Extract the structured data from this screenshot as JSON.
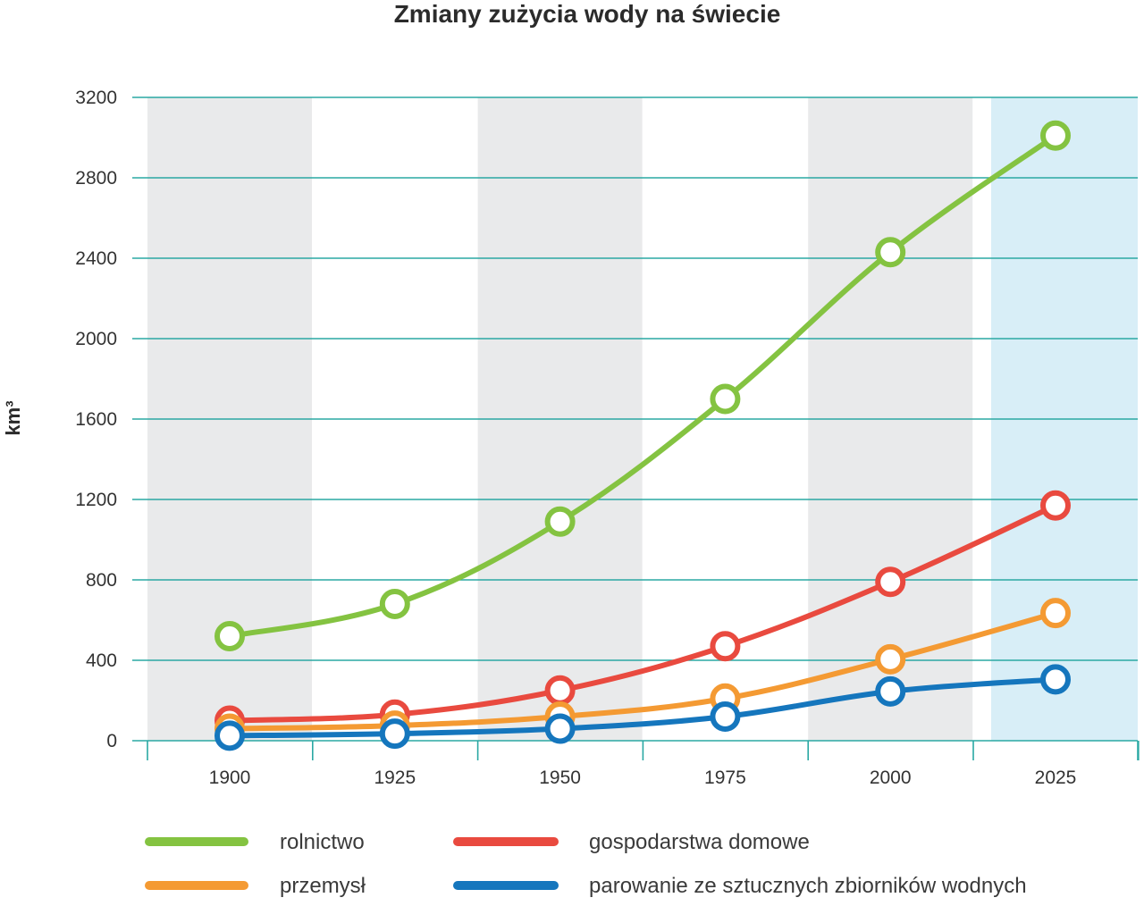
{
  "chart_data": {
    "type": "line",
    "title": "Zmiany zużycia wody na świecie",
    "xlabel": "",
    "ylabel": "km³",
    "x": [
      "1900",
      "1925",
      "1950",
      "1975",
      "2000",
      "2025"
    ],
    "ylim": [
      0,
      3200
    ],
    "yticks": [
      "0",
      "400",
      "800",
      "1200",
      "1600",
      "2000",
      "2400",
      "2800",
      "3200"
    ],
    "grid": "horizontal",
    "highlighted_category": "2025",
    "legend_position": "bottom",
    "series": [
      {
        "name": "rolnictwo",
        "color": "#84c341",
        "values": [
          520,
          680,
          1090,
          1700,
          2430,
          3010
        ]
      },
      {
        "name": "gospodarstwa domowe",
        "color": "#e94a3f",
        "values": [
          100,
          130,
          250,
          470,
          790,
          1170
        ]
      },
      {
        "name": "przemysł",
        "color": "#f49a33",
        "values": [
          60,
          75,
          120,
          210,
          405,
          635
        ]
      },
      {
        "name": "parowanie ze sztucznych zbiorników wodnych",
        "color": "#1576bd",
        "values": [
          25,
          35,
          60,
          120,
          245,
          305
        ]
      }
    ],
    "colors": {
      "grid": "#2aa8a3",
      "band": "#e9eaeb",
      "highlight": "#d8eef7"
    }
  }
}
